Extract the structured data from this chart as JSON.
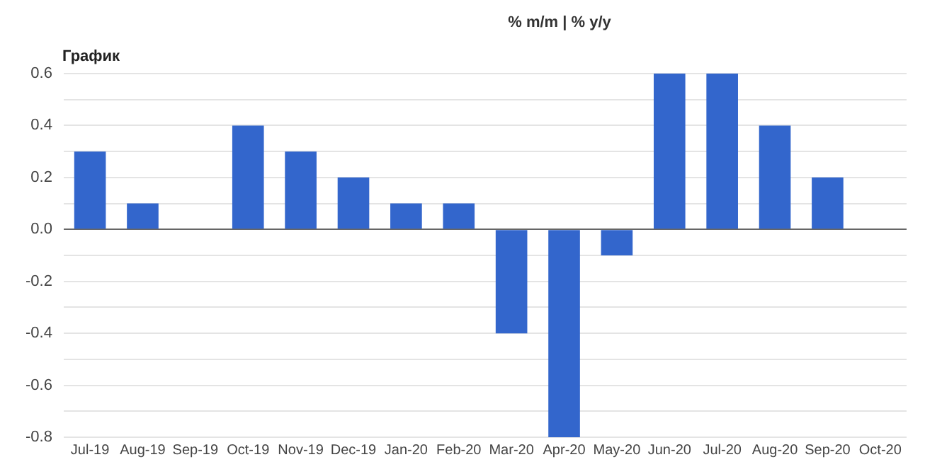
{
  "chart_data": {
    "type": "bar",
    "title": "График",
    "annotations": [
      "% m/m | % y/y"
    ],
    "categories": [
      "Jul-19",
      "Aug-19",
      "Sep-19",
      "Oct-19",
      "Nov-19",
      "Dec-19",
      "Jan-20",
      "Feb-20",
      "Mar-20",
      "Apr-20",
      "May-20",
      "Jun-20",
      "Jul-20",
      "Aug-20",
      "Sep-20",
      "Oct-20"
    ],
    "values": [
      0.3,
      0.1,
      null,
      0.4,
      0.3,
      0.2,
      0.1,
      0.1,
      -0.4,
      -0.8,
      -0.1,
      0.6,
      0.6,
      0.4,
      0.2,
      null
    ],
    "color": "#3366cc",
    "ylim": [
      -0.8,
      0.6
    ],
    "yticks": [
      {
        "value": -0.8,
        "label": "-0.8"
      },
      {
        "value": -0.7,
        "label": null
      },
      {
        "value": -0.6,
        "label": "-0.6"
      },
      {
        "value": -0.5,
        "label": null
      },
      {
        "value": -0.4,
        "label": "-0.4"
      },
      {
        "value": -0.3,
        "label": null
      },
      {
        "value": -0.2,
        "label": "-0.2"
      },
      {
        "value": -0.1,
        "label": null
      },
      {
        "value": 0,
        "label": "0.0"
      },
      {
        "value": 0.1,
        "label": null
      },
      {
        "value": 0.2,
        "label": "0.2"
      },
      {
        "value": 0.3,
        "label": null
      },
      {
        "value": 0.4,
        "label": "0.4"
      },
      {
        "value": 0.5,
        "label": null
      },
      {
        "value": 0.6,
        "label": "0.6"
      }
    ],
    "grid": "y",
    "legend": false
  }
}
